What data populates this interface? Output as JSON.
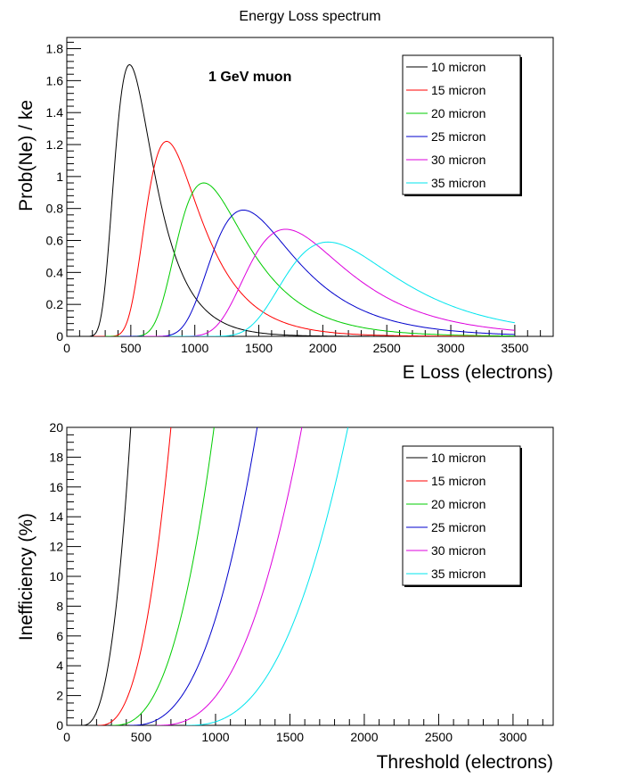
{
  "page": {
    "title": "Energy Loss spectrum"
  },
  "chart_data": [
    {
      "type": "line",
      "title": "Energy Loss spectrum",
      "xlabel": "E Loss (electrons)",
      "ylabel": "Prob(Ne) / ke",
      "xlim": [
        0,
        3800
      ],
      "ylim": [
        0,
        1.87
      ],
      "xticks": [
        0,
        500,
        1000,
        1500,
        2000,
        2500,
        3000,
        3500
      ],
      "yticks": [
        0,
        0.2,
        0.4,
        0.6,
        0.8,
        1,
        1.2,
        1.4,
        1.6,
        1.8
      ],
      "annotation": "1 GeV muon",
      "legend_position": "top-right",
      "grid": false,
      "series": [
        {
          "name": "10 micron",
          "color": "#000000",
          "mpv": 490,
          "peak": 1.7,
          "scale": 105,
          "x_start": 100,
          "x_end": 3500
        },
        {
          "name": "15 micron",
          "color": "#ff0000",
          "mpv": 780,
          "peak": 1.22,
          "scale": 146,
          "x_start": 210,
          "x_end": 3500
        },
        {
          "name": "20 micron",
          "color": "#00cc00",
          "mpv": 1070,
          "peak": 0.96,
          "scale": 185,
          "x_start": 300,
          "x_end": 3500
        },
        {
          "name": "25 micron",
          "color": "#0000cc",
          "mpv": 1380,
          "peak": 0.79,
          "scale": 225,
          "x_start": 420,
          "x_end": 3500
        },
        {
          "name": "30 micron",
          "color": "#dd00dd",
          "mpv": 1710,
          "peak": 0.67,
          "scale": 265,
          "x_start": 600,
          "x_end": 3500
        },
        {
          "name": "35 micron",
          "color": "#00e5ee",
          "mpv": 2040,
          "peak": 0.59,
          "scale": 300,
          "x_start": 800,
          "x_end": 3500
        }
      ]
    },
    {
      "type": "line",
      "xlabel": "Threshold (electrons)",
      "ylabel": "Inefficiency (%)",
      "xlim": [
        0,
        3270
      ],
      "ylim": [
        0,
        20
      ],
      "xticks": [
        0,
        500,
        1000,
        1500,
        2000,
        2500,
        3000
      ],
      "yticks": [
        0,
        2,
        4,
        6,
        8,
        10,
        12,
        14,
        16,
        18,
        20
      ],
      "legend_position": "top-right",
      "grid": false,
      "series": [
        {
          "name": "10 micron",
          "color": "#000000",
          "x_start": 100,
          "x_end": 430,
          "steepness": 2.6
        },
        {
          "name": "15 micron",
          "color": "#ff0000",
          "x_start": 210,
          "x_end": 700,
          "steepness": 2.6
        },
        {
          "name": "20 micron",
          "color": "#00cc00",
          "x_start": 300,
          "x_end": 990,
          "steepness": 2.6
        },
        {
          "name": "25 micron",
          "color": "#0000cc",
          "x_start": 420,
          "x_end": 1280,
          "steepness": 2.6
        },
        {
          "name": "30 micron",
          "color": "#dd00dd",
          "x_start": 600,
          "x_end": 1580,
          "steepness": 2.6
        },
        {
          "name": "35 micron",
          "color": "#00e5ee",
          "x_start": 800,
          "x_end": 1890,
          "steepness": 2.6
        }
      ]
    }
  ]
}
